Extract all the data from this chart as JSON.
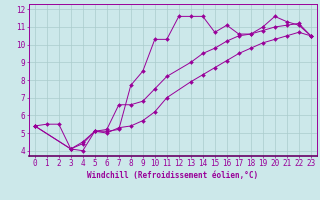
{
  "xlabel": "Windchill (Refroidissement éolien,°C)",
  "bg_color": "#cce8ea",
  "line_color": "#990099",
  "grid_color": "#aacccc",
  "border_color": "#660066",
  "xlim": [
    -0.5,
    23.5
  ],
  "ylim": [
    3.7,
    12.3
  ],
  "xticks": [
    0,
    1,
    2,
    3,
    4,
    5,
    6,
    7,
    8,
    9,
    10,
    11,
    12,
    13,
    14,
    15,
    16,
    17,
    18,
    19,
    20,
    21,
    22,
    23
  ],
  "yticks": [
    4,
    5,
    6,
    7,
    8,
    9,
    10,
    11,
    12
  ],
  "series1_x": [
    0,
    1,
    2,
    3,
    4,
    5,
    6,
    7,
    8,
    9,
    10,
    11,
    12,
    13,
    14,
    15,
    16,
    17,
    18,
    19,
    20,
    21,
    22,
    23
  ],
  "series1_y": [
    5.4,
    5.5,
    5.5,
    4.1,
    4.0,
    5.1,
    5.1,
    5.2,
    7.7,
    8.5,
    10.3,
    10.3,
    11.6,
    11.6,
    11.6,
    10.7,
    11.1,
    10.6,
    10.6,
    11.0,
    11.6,
    11.3,
    11.1,
    10.5
  ],
  "series2_x": [
    0,
    3,
    4,
    5,
    6,
    7,
    8,
    9,
    10,
    11,
    13,
    14,
    15,
    16,
    17,
    18,
    19,
    20,
    21,
    22,
    23
  ],
  "series2_y": [
    5.4,
    4.1,
    4.5,
    5.1,
    5.2,
    6.6,
    6.6,
    6.8,
    7.5,
    8.2,
    9.0,
    9.5,
    9.8,
    10.2,
    10.5,
    10.6,
    10.8,
    11.0,
    11.1,
    11.2,
    10.5
  ],
  "series3_x": [
    0,
    3,
    4,
    5,
    6,
    7,
    8,
    9,
    10,
    11,
    13,
    14,
    15,
    16,
    17,
    18,
    19,
    20,
    21,
    22,
    23
  ],
  "series3_y": [
    5.4,
    4.1,
    4.4,
    5.1,
    5.0,
    5.3,
    5.4,
    5.7,
    6.2,
    7.0,
    7.9,
    8.3,
    8.7,
    9.1,
    9.5,
    9.8,
    10.1,
    10.3,
    10.5,
    10.7,
    10.5
  ],
  "tick_fontsize": 5.5,
  "xlabel_fontsize": 5.5
}
